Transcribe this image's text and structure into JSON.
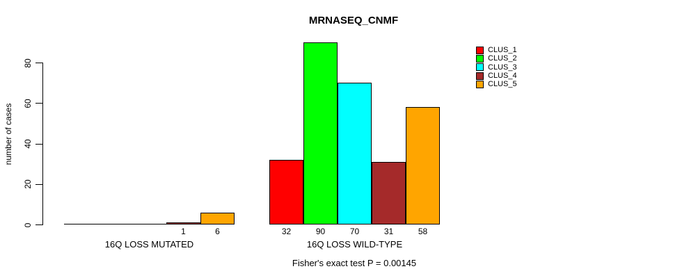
{
  "chart_data": {
    "type": "bar",
    "title": "MRNASEQ_CNMF",
    "ylabel": "number of cases",
    "annotation": "Fisher's exact test P = 0.00145",
    "y_ticks": [
      0,
      20,
      40,
      60,
      80
    ],
    "ylim": [
      0,
      90
    ],
    "grid": false,
    "legend_position": "top-right",
    "categories": [
      "16Q LOSS MUTATED",
      "16Q LOSS WILD-TYPE"
    ],
    "series": [
      {
        "name": "CLUS_1",
        "color": "#FF0000",
        "values": [
          0,
          32
        ]
      },
      {
        "name": "CLUS_2",
        "color": "#00FF00",
        "values": [
          0,
          90
        ]
      },
      {
        "name": "CLUS_3",
        "color": "#00FFFF",
        "values": [
          0,
          70
        ]
      },
      {
        "name": "CLUS_4",
        "color": "#A52A2A",
        "values": [
          1,
          31
        ]
      },
      {
        "name": "CLUS_5",
        "color": "#FFA500",
        "values": [
          6,
          58
        ]
      }
    ],
    "bar_value_labels": [
      [
        "",
        "",
        "",
        "1",
        "6"
      ],
      [
        "32",
        "90",
        "70",
        "31",
        "58"
      ]
    ],
    "axis_color": "#000000",
    "bar_border_color": "#000000",
    "background_color": "#FFFFFF"
  }
}
